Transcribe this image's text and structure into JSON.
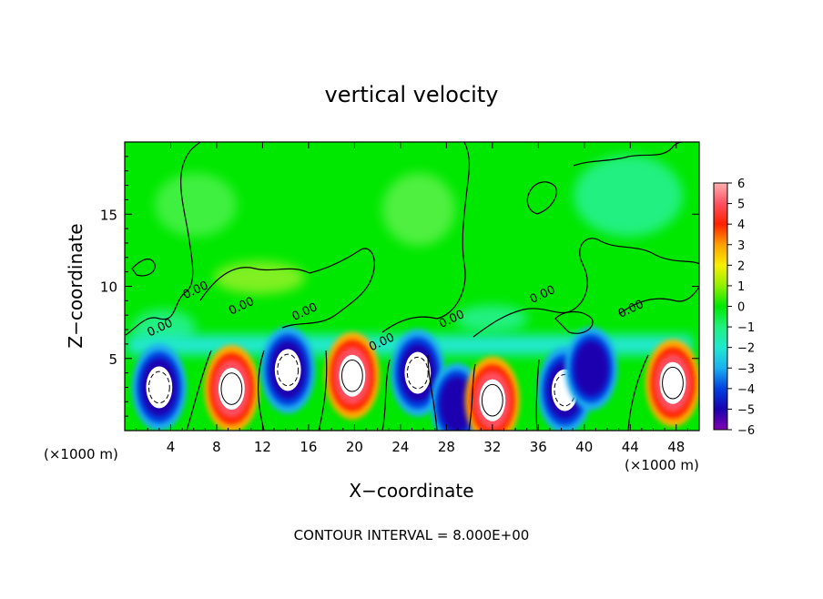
{
  "chart_data": {
    "type": "heatmap",
    "title": "vertical velocity",
    "xlabel": "X−coordinate",
    "ylabel": "Z−coordinate",
    "x_unit_left": "(×1000 m)",
    "x_unit_right": "(×1000 m)",
    "x_ticks": [
      4,
      8,
      12,
      16,
      20,
      24,
      28,
      32,
      36,
      40,
      44,
      48
    ],
    "y_ticks": [
      5,
      10,
      15
    ],
    "xlim": [
      0,
      50
    ],
    "ylim": [
      0,
      20
    ],
    "footer": "CONTOUR INTERVAL = 8.000E+00",
    "colorbar": {
      "ticks": [
        "6",
        "5",
        "4",
        "3",
        "2",
        "1",
        "0",
        "−1",
        "−2",
        "−3",
        "−4",
        "−5",
        "−6"
      ],
      "range": [
        -6,
        6
      ]
    },
    "contour_labels": [
      {
        "text": "0.00",
        "x": 3.2,
        "z": 6.9
      },
      {
        "text": "0.00",
        "x": 6.3,
        "z": 9.5
      },
      {
        "text": "0.00",
        "x": 10.3,
        "z": 8.4
      },
      {
        "text": "0.00",
        "x": 15.8,
        "z": 8.0
      },
      {
        "text": "0.00",
        "x": 22.5,
        "z": 5.9
      },
      {
        "text": "0.00",
        "x": 28.6,
        "z": 7.5
      },
      {
        "text": "0.00",
        "x": 36.5,
        "z": 9.2
      },
      {
        "text": "0.00",
        "x": 44.2,
        "z": 8.2
      }
    ],
    "cells": [
      {
        "x": 3.0,
        "z": 3.0,
        "sign": "down",
        "peak": -6
      },
      {
        "x": 9.3,
        "z": 2.9,
        "sign": "up",
        "peak": 6
      },
      {
        "x": 14.2,
        "z": 4.2,
        "sign": "down",
        "peak": -6
      },
      {
        "x": 19.8,
        "z": 3.8,
        "sign": "up",
        "peak": 6
      },
      {
        "x": 25.5,
        "z": 4.0,
        "sign": "down",
        "peak": -6
      },
      {
        "x": 28.9,
        "z": 1.8,
        "sign": "down",
        "peak": -5
      },
      {
        "x": 32.0,
        "z": 2.1,
        "sign": "up",
        "peak": 6
      },
      {
        "x": 38.3,
        "z": 2.8,
        "sign": "down",
        "peak": -6
      },
      {
        "x": 40.6,
        "z": 4.3,
        "sign": "down",
        "peak": -5
      },
      {
        "x": 47.7,
        "z": 3.3,
        "sign": "up",
        "peak": 6
      }
    ]
  }
}
